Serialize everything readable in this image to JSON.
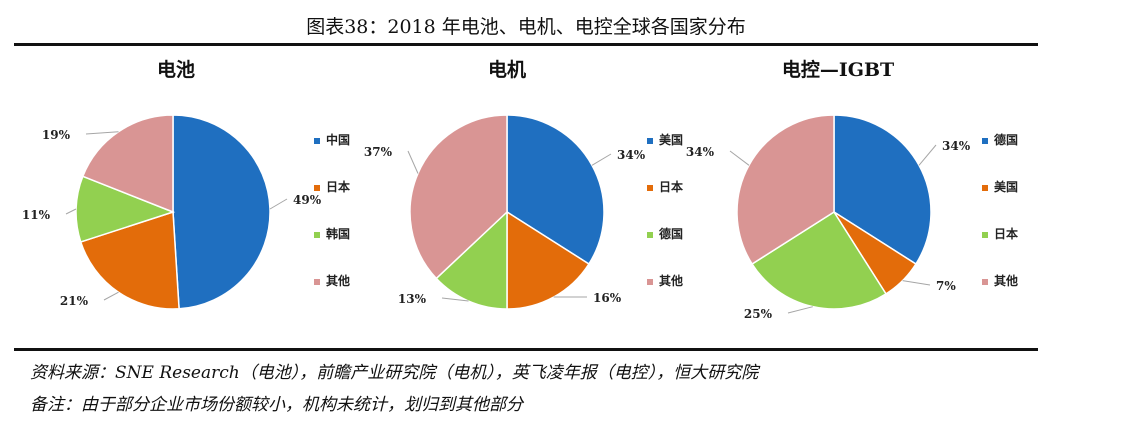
{
  "figure": {
    "title": "图表38：2018 年电池、电机、电控全球各国家分布",
    "source_text": "资料来源：SNE Research（电池），前瞻产业研究院（电机），英飞凌年报（电控），恒大研究院",
    "note_text": "备注：由于部分企业市场份额较小，机构未统计，划归到其他部分"
  },
  "chart_data": [
    {
      "type": "pie",
      "title": "电池",
      "categories": [
        "中国",
        "日本",
        "韩国",
        "其他"
      ],
      "values": [
        49,
        21,
        11,
        19
      ],
      "labels": [
        "49%",
        "21%",
        "11%",
        "19%"
      ],
      "colors": [
        "#1f6fc0",
        "#e36c0a",
        "#92d050",
        "#d99594"
      ],
      "legend_position": "right"
    },
    {
      "type": "pie",
      "title": "电机",
      "categories": [
        "美国",
        "日本",
        "德国",
        "其他"
      ],
      "values": [
        34,
        16,
        13,
        37
      ],
      "labels": [
        "34%",
        "16%",
        "13%",
        "37%"
      ],
      "colors": [
        "#1f6fc0",
        "#e36c0a",
        "#92d050",
        "#d99594"
      ],
      "legend_position": "right"
    },
    {
      "type": "pie",
      "title": "电控—IGBT",
      "categories": [
        "德国",
        "美国",
        "日本",
        "其他"
      ],
      "values": [
        34,
        7,
        25,
        34
      ],
      "labels": [
        "34%",
        "7%",
        "25%",
        "34%"
      ],
      "colors": [
        "#1f6fc0",
        "#e36c0a",
        "#92d050",
        "#d99594"
      ],
      "legend_position": "right"
    }
  ]
}
